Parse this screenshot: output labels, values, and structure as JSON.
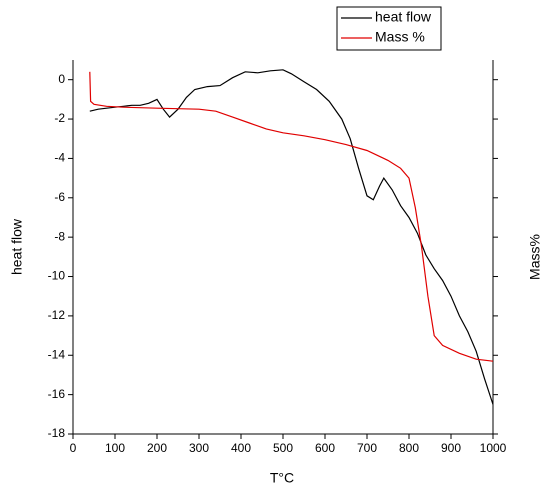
{
  "chart_data": {
    "type": "line",
    "xlabel": "T°C",
    "ylabel": "heat flow",
    "y2label": "Mass%",
    "xlim": [
      0,
      1000
    ],
    "xticks": [
      0,
      100,
      200,
      300,
      400,
      500,
      600,
      700,
      800,
      900,
      1000
    ],
    "ylim": [
      -18,
      1
    ],
    "yticks": [
      -18,
      -16,
      -14,
      -12,
      -10,
      -8,
      -6,
      -4,
      -2,
      0
    ],
    "legend": "top",
    "series": [
      {
        "name": "heat flow",
        "color": "#000000",
        "x": [
          40,
          60,
          80,
          100,
          120,
          140,
          160,
          180,
          200,
          215,
          230,
          250,
          270,
          290,
          320,
          350,
          380,
          410,
          440,
          470,
          500,
          520,
          550,
          580,
          610,
          640,
          660,
          680,
          700,
          715,
          730,
          740,
          760,
          780,
          800,
          820,
          840,
          860,
          880,
          900,
          920,
          940,
          960,
          980,
          1000
        ],
        "values": [
          -1.6,
          -1.5,
          -1.45,
          -1.4,
          -1.35,
          -1.3,
          -1.3,
          -1.2,
          -1.0,
          -1.5,
          -1.9,
          -1.5,
          -0.9,
          -0.5,
          -0.35,
          -0.3,
          0.1,
          0.4,
          0.35,
          0.45,
          0.5,
          0.3,
          -0.1,
          -0.5,
          -1.1,
          -2.0,
          -3.0,
          -4.5,
          -5.9,
          -6.1,
          -5.4,
          -5.0,
          -5.6,
          -6.4,
          -7.0,
          -7.8,
          -8.9,
          -9.6,
          -10.2,
          -11.0,
          -12.0,
          -12.8,
          -13.8,
          -15.2,
          -16.5
        ]
      },
      {
        "name": "Mass %",
        "color": "#e00000",
        "x": [
          40,
          42,
          50,
          80,
          120,
          200,
          300,
          340,
          380,
          420,
          460,
          500,
          550,
          600,
          650,
          700,
          750,
          780,
          800,
          815,
          830,
          845,
          860,
          880,
          920,
          960,
          1000
        ],
        "values": [
          0.4,
          -1.1,
          -1.25,
          -1.35,
          -1.4,
          -1.45,
          -1.5,
          -1.6,
          -1.9,
          -2.2,
          -2.5,
          -2.7,
          -2.85,
          -3.05,
          -3.3,
          -3.6,
          -4.1,
          -4.5,
          -5.0,
          -6.5,
          -8.5,
          -11,
          -13,
          -13.5,
          -13.9,
          -14.2,
          -14.3
        ]
      }
    ]
  }
}
